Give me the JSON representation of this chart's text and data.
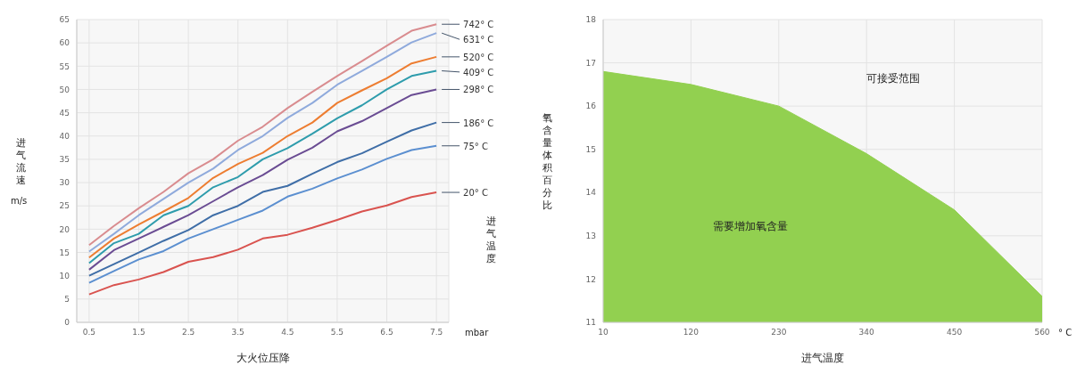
{
  "chart_data": [
    {
      "type": "line",
      "xlabel": "大火位压降",
      "ylabel": "进气流速",
      "legend_title": "进气温度",
      "annotations": [
        "m/s",
        "mbar"
      ],
      "x": [
        0.5,
        1,
        1.5,
        2,
        2.5,
        3,
        3.5,
        4,
        4.5,
        5,
        5.5,
        6,
        6.5,
        7,
        7.5
      ],
      "series": [
        {
          "name": "742° C",
          "color": "#d98c8f",
          "values": [
            16.6,
            20.7,
            24.5,
            28,
            32,
            35,
            39,
            42,
            46,
            49.5,
            52.9,
            56.1,
            59.4,
            62.6,
            64
          ]
        },
        {
          "name": "631° C",
          "color": "#8faadc",
          "values": [
            15.2,
            19,
            23,
            26.5,
            30,
            33,
            37,
            40,
            43.9,
            47.1,
            51,
            54,
            57,
            60.1,
            62.1
          ]
        },
        {
          "name": "520° C",
          "color": "#ed7d31",
          "values": [
            13.9,
            18,
            21,
            23.8,
            26.7,
            31,
            34,
            36.4,
            40,
            42.9,
            47.1,
            49.8,
            52.4,
            55.6,
            57
          ]
        },
        {
          "name": "409° C",
          "color": "#2e9cac",
          "values": [
            12.7,
            17,
            19,
            23,
            25,
            29,
            31.2,
            35,
            37.4,
            40.5,
            43.8,
            46.6,
            50,
            52.9,
            54
          ]
        },
        {
          "name": "298° C",
          "color": "#6a4c93",
          "values": [
            11.3,
            15.5,
            18,
            20.5,
            23,
            26,
            29,
            31.6,
            34.9,
            37.5,
            41,
            43.2,
            46,
            48.8,
            50
          ]
        },
        {
          "name": "186° C",
          "color": "#3f6ea7",
          "values": [
            10,
            12.5,
            15,
            17.5,
            19.8,
            23,
            25,
            28,
            29.3,
            31.9,
            34.4,
            36.3,
            38.8,
            41.2,
            42.9
          ]
        },
        {
          "name": "75° C",
          "color": "#5b8fd0",
          "values": [
            8.5,
            11,
            13.5,
            15.3,
            18,
            20,
            22,
            24,
            27,
            28.7,
            30.9,
            32.8,
            35.1,
            37,
            37.9
          ]
        },
        {
          "name": "20° C",
          "color": "#d9534f",
          "values": [
            6,
            8,
            9.2,
            10.8,
            13,
            14,
            15.6,
            18,
            18.8,
            20.3,
            22,
            23.8,
            25.1,
            26.9,
            27.9
          ]
        }
      ],
      "xlim": [
        0.25,
        7.75
      ],
      "xticks": [
        0.5,
        1.5,
        2.5,
        3.5,
        4.5,
        5.5,
        6.5,
        7.5
      ],
      "ylim": [
        0,
        65
      ],
      "yticks": [
        0,
        5,
        10,
        15,
        20,
        25,
        30,
        35,
        40,
        45,
        50,
        55,
        60,
        65
      ],
      "grid": true,
      "legend": false,
      "marker": "none",
      "line_style": "solid"
    },
    {
      "type": "area",
      "xlabel": "进气温度",
      "ylabel": "氧含量体积百分比",
      "annotations": [
        "可接受范围",
        "需要增加氧含量",
        "° C"
      ],
      "x": [
        10,
        120,
        230,
        340,
        450,
        560
      ],
      "series": [
        {
          "color": "#92d050",
          "values": [
            16.8,
            16.5,
            16.0,
            14.9,
            13.6,
            11.6
          ]
        }
      ],
      "xlim": [
        10,
        560
      ],
      "xticks": [
        10,
        120,
        230,
        340,
        450,
        560
      ],
      "ylim": [
        11,
        18
      ],
      "yticks": [
        11,
        12,
        13,
        14,
        15,
        16,
        17,
        18
      ],
      "grid": true,
      "legend": false
    }
  ]
}
